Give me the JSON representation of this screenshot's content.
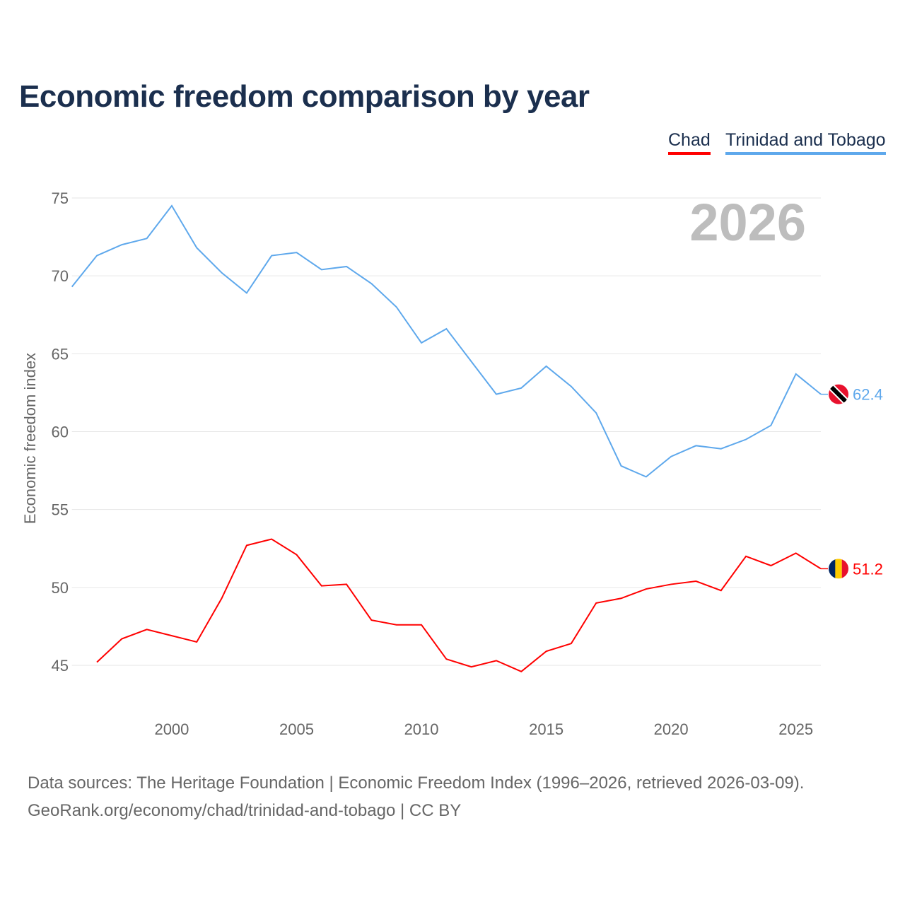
{
  "title": "Economic freedom comparison by year",
  "legend": [
    {
      "label": "Chad",
      "color": "#ff0000"
    },
    {
      "label": "Trinidad and Tobago",
      "color": "#5ea8ec"
    }
  ],
  "source_line1": "Data sources: The Heritage Foundation | Economic Freedom Index (1996–2026, retrieved 2026-03-09).",
  "source_line2": "GeoRank.org/economy/chad/trinidad-and-tobago | CC BY",
  "chart_data": {
    "type": "line",
    "title": "Economic freedom comparison by year",
    "ylabel": "Economic freedom index",
    "xlabel": "",
    "year_watermark": "2026",
    "xlim": [
      1996,
      2026
    ],
    "ylim": [
      42.5,
      77
    ],
    "xticks": [
      2000,
      2005,
      2010,
      2015,
      2020,
      2025
    ],
    "yticks": [
      45,
      50,
      55,
      60,
      65,
      70,
      75
    ],
    "grid": true,
    "legend_position": "top-right",
    "series": [
      {
        "name": "Chad",
        "color": "#ff0000",
        "end_label": "51.2",
        "x": [
          1997,
          1998,
          1999,
          2000,
          2001,
          2002,
          2003,
          2004,
          2005,
          2006,
          2007,
          2008,
          2009,
          2010,
          2011,
          2012,
          2013,
          2014,
          2015,
          2016,
          2017,
          2018,
          2019,
          2020,
          2021,
          2022,
          2023,
          2024,
          2025,
          2026
        ],
        "values": [
          45.2,
          46.7,
          47.3,
          46.9,
          46.5,
          49.3,
          52.7,
          53.1,
          52.1,
          50.1,
          50.2,
          47.9,
          47.6,
          47.6,
          45.4,
          44.9,
          45.3,
          44.6,
          45.9,
          46.4,
          49.0,
          49.3,
          49.9,
          50.2,
          50.4,
          49.8,
          52.0,
          51.4,
          52.2,
          51.2
        ]
      },
      {
        "name": "Trinidad and Tobago",
        "color": "#5ea8ec",
        "end_label": "62.4",
        "x": [
          1996,
          1997,
          1998,
          1999,
          2000,
          2001,
          2002,
          2003,
          2004,
          2005,
          2006,
          2007,
          2008,
          2009,
          2010,
          2011,
          2012,
          2013,
          2014,
          2015,
          2016,
          2017,
          2018,
          2019,
          2020,
          2021,
          2022,
          2023,
          2024,
          2025,
          2026
        ],
        "values": [
          69.3,
          71.3,
          72.0,
          72.4,
          74.5,
          71.8,
          70.2,
          68.9,
          71.3,
          71.5,
          70.4,
          70.6,
          69.5,
          68.0,
          65.7,
          66.6,
          64.5,
          62.4,
          62.8,
          64.2,
          62.9,
          61.2,
          57.8,
          57.1,
          58.4,
          59.1,
          58.9,
          59.5,
          60.4,
          63.7,
          62.4
        ]
      }
    ]
  }
}
